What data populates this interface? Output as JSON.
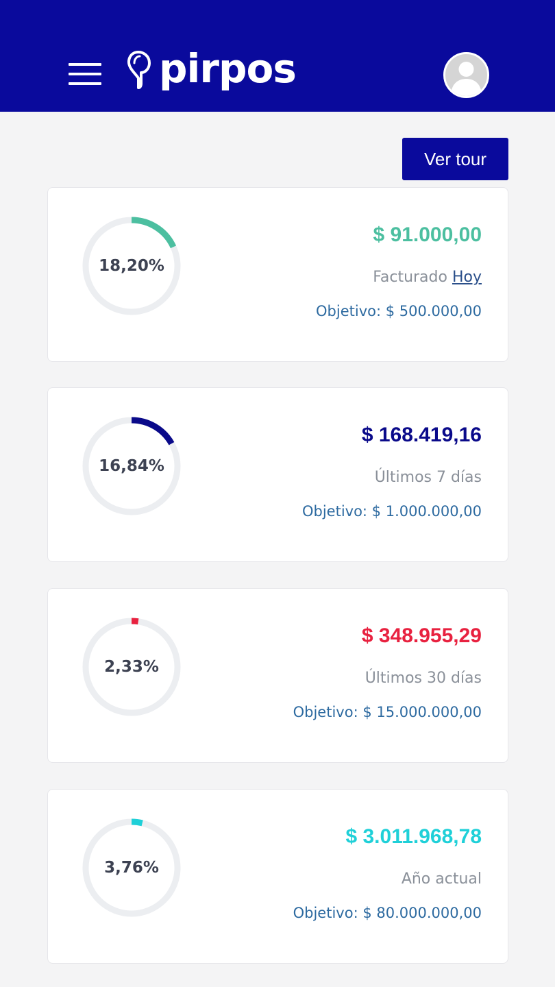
{
  "header": {
    "logo_text": "pirpos",
    "menu_icon": "hamburger-menu-icon",
    "avatar_icon": "user-avatar-icon"
  },
  "tour_button": "Ver tour",
  "cards": [
    {
      "percent_label": "18,20%",
      "percent": 18.2,
      "amount": "$ 91.000,00",
      "label_prefix": "Facturado ",
      "label_link": "Hoy",
      "objective": "Objetivo: $ 500.000,00",
      "color": "#4cbfa0"
    },
    {
      "percent_label": "16,84%",
      "percent": 16.84,
      "amount": "$ 168.419,16",
      "label_prefix": "Últimos 7 días",
      "label_link": "",
      "objective": "Objetivo: $ 1.000.000,00",
      "color": "#0a0a8a"
    },
    {
      "percent_label": "2,33%",
      "percent": 2.33,
      "amount": "$ 348.955,29",
      "label_prefix": "Últimos 30 días",
      "label_link": "",
      "objective": "Objetivo: $ 15.000.000,00",
      "color": "#e8213f"
    },
    {
      "percent_label": "3,76%",
      "percent": 3.76,
      "amount": "$ 3.011.968,78",
      "label_prefix": "Año actual",
      "label_link": "",
      "objective": "Objetivo: $ 80.000.000,00",
      "color": "#1fd0d8"
    }
  ]
}
